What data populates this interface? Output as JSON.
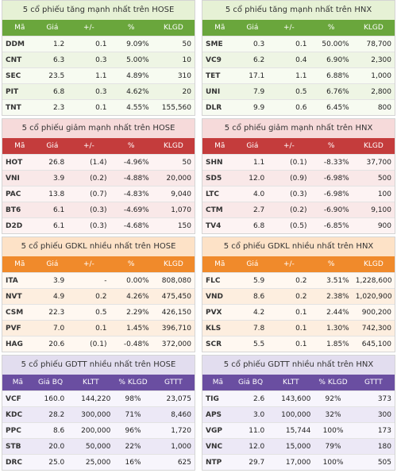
{
  "sections": [
    {
      "theme": "up",
      "hose": {
        "title": "5 cổ phiếu tăng mạnh nhất trên HOSE",
        "headers": [
          "Mã",
          "Giá",
          "+/-",
          "%",
          "KLGD"
        ],
        "rows": [
          [
            "DDM",
            "1.2",
            "0.1",
            "9.09%",
            "50"
          ],
          [
            "CNT",
            "6.3",
            "0.3",
            "5.00%",
            "10"
          ],
          [
            "SEC",
            "23.5",
            "1.1",
            "4.89%",
            "310"
          ],
          [
            "PIT",
            "6.8",
            "0.3",
            "4.62%",
            "20"
          ],
          [
            "TNT",
            "2.3",
            "0.1",
            "4.55%",
            "155,560"
          ]
        ]
      },
      "hnx": {
        "title": "5 cổ phiếu tăng mạnh nhất trên HNX",
        "headers": [
          "Mã",
          "Giá",
          "+/-",
          "%",
          "KLGD"
        ],
        "rows": [
          [
            "SME",
            "0.3",
            "0.1",
            "50.00%",
            "78,700"
          ],
          [
            "VC9",
            "6.2",
            "0.4",
            "6.90%",
            "2,300"
          ],
          [
            "TET",
            "17.1",
            "1.1",
            "6.88%",
            "1,000"
          ],
          [
            "UNI",
            "7.9",
            "0.5",
            "6.76%",
            "2,800"
          ],
          [
            "DLR",
            "9.9",
            "0.6",
            "6.45%",
            "800"
          ]
        ]
      }
    },
    {
      "theme": "down",
      "hose": {
        "title": "5 cổ phiếu giảm mạnh nhất trên HOSE",
        "headers": [
          "Mã",
          "Giá",
          "+/-",
          "%",
          "KLGD"
        ],
        "rows": [
          [
            "HOT",
            "26.8",
            "(1.4)",
            "-4.96%",
            "50"
          ],
          [
            "VNI",
            "3.9",
            "(0.2)",
            "-4.88%",
            "20,000"
          ],
          [
            "PAC",
            "13.8",
            "(0.7)",
            "-4.83%",
            "9,040"
          ],
          [
            "BT6",
            "6.1",
            "(0.3)",
            "-4.69%",
            "1,070"
          ],
          [
            "D2D",
            "6.1",
            "(0.3)",
            "-4.68%",
            "150"
          ]
        ]
      },
      "hnx": {
        "title": "5 cổ phiếu giảm mạnh nhất trên HNX",
        "headers": [
          "Mã",
          "Giá",
          "+/-",
          "%",
          "KLGD"
        ],
        "rows": [
          [
            "SHN",
            "1.1",
            "(0.1)",
            "-8.33%",
            "37,700"
          ],
          [
            "SD5",
            "12.0",
            "(0.9)",
            "-6.98%",
            "500"
          ],
          [
            "LTC",
            "4.0",
            "(0.3)",
            "-6.98%",
            "100"
          ],
          [
            "CTM",
            "2.7",
            "(0.2)",
            "-6.90%",
            "9,100"
          ],
          [
            "TV4",
            "6.8",
            "(0.5)",
            "-6.85%",
            "900"
          ]
        ]
      }
    },
    {
      "theme": "vol",
      "hose": {
        "title": "5 cổ phiếu GDKL nhiều nhất trên HOSE",
        "headers": [
          "Mã",
          "Giá",
          "+/-",
          "%",
          "KLGD"
        ],
        "rows": [
          [
            "ITA",
            "3.9",
            "-",
            "0.00%",
            "808,080"
          ],
          [
            "NVT",
            "4.9",
            "0.2",
            "4.26%",
            "475,450"
          ],
          [
            "CSM",
            "22.3",
            "0.5",
            "2.29%",
            "426,150"
          ],
          [
            "PVF",
            "7.0",
            "0.1",
            "1.45%",
            "396,710"
          ],
          [
            "HAG",
            "20.6",
            "(0.1)",
            "-0.48%",
            "372,000"
          ]
        ]
      },
      "hnx": {
        "title": "5 cổ phiếu GDKL nhiều nhất trên HNX",
        "headers": [
          "Mã",
          "Giá",
          "+/-",
          "%",
          "KLGD"
        ],
        "rows": [
          [
            "FLC",
            "5.9",
            "0.2",
            "3.51%",
            "1,228,600"
          ],
          [
            "VND",
            "8.6",
            "0.2",
            "2.38%",
            "1,020,900"
          ],
          [
            "PVX",
            "4.2",
            "0.1",
            "2.44%",
            "900,200"
          ],
          [
            "KLS",
            "7.8",
            "0.1",
            "1.30%",
            "742,300"
          ],
          [
            "SCR",
            "5.5",
            "0.1",
            "1.85%",
            "645,100"
          ]
        ]
      }
    },
    {
      "theme": "deal",
      "hose": {
        "title": "5 cổ phiếu GDTT nhiều nhất trên HOSE",
        "headers": [
          "Mã",
          "Giá BQ",
          "KLTT",
          "% KLGD",
          "GTTT"
        ],
        "rows": [
          [
            "VCF",
            "160.0",
            "144,220",
            "98%",
            "23,075"
          ],
          [
            "KDC",
            "28.2",
            "300,000",
            "71%",
            "8,460"
          ],
          [
            "PPC",
            "8.6",
            "200,000",
            "96%",
            "1,720"
          ],
          [
            "STB",
            "20.0",
            "50,000",
            "22%",
            "1,000"
          ],
          [
            "DRC",
            "25.0",
            "25,000",
            "16%",
            "625"
          ]
        ]
      },
      "hnx": {
        "title": "5 cổ phiếu GDTT nhiều nhất trên HNX",
        "headers": [
          "Mã",
          "Giá BQ",
          "KLTT",
          "% KLGD",
          "GTTT"
        ],
        "rows": [
          [
            "TIG",
            "2.6",
            "143,600",
            "92%",
            "373"
          ],
          [
            "APS",
            "3.0",
            "100,000",
            "32%",
            "300"
          ],
          [
            "VGP",
            "11.0",
            "15,744",
            "100%",
            "173"
          ],
          [
            "VNC",
            "12.0",
            "15,000",
            "79%",
            "180"
          ],
          [
            "NTP",
            "29.7",
            "17,000",
            "100%",
            "505"
          ]
        ]
      }
    }
  ]
}
